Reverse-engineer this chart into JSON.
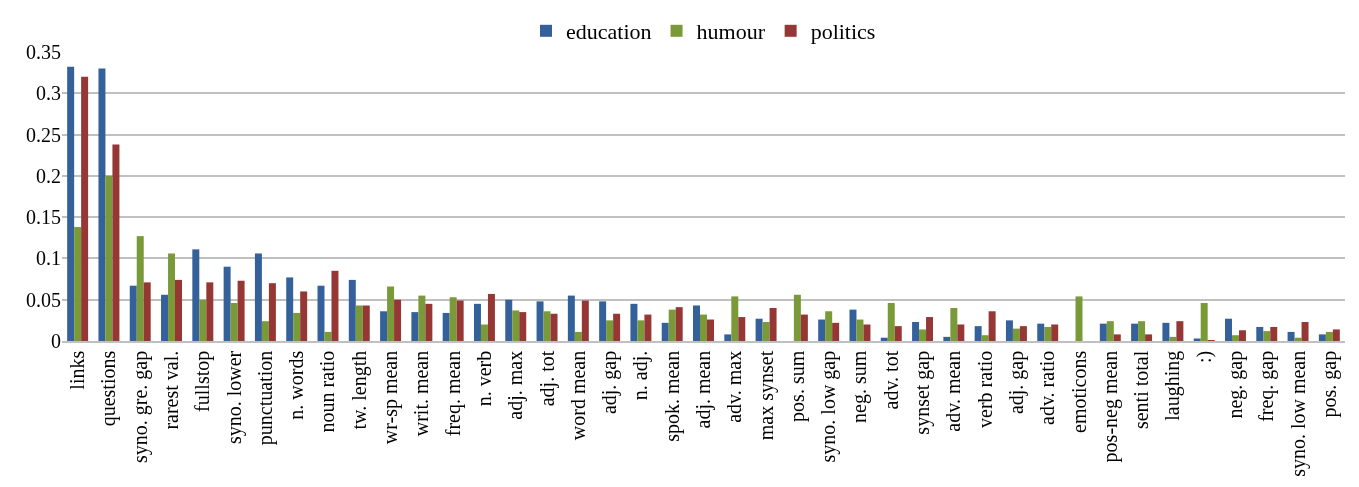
{
  "chart_data": {
    "type": "bar",
    "categories": [
      "links",
      "questions",
      "syno. gre. gap",
      "rarest val.",
      "fullstop",
      "syno. lower",
      "punctuation",
      "n. words",
      "noun ratio",
      "tw. length",
      "wr-sp mean",
      "writ. mean",
      "freq. mean",
      "n. verb",
      "adj. max",
      "adj. tot",
      "word mean",
      "adj. gap",
      "n. adj.",
      "spok. mean",
      "adj. mean",
      "adv. max",
      "max synset",
      "pos. sum",
      "syno. low gap",
      "neg. sum",
      "adv. tot",
      "synset gap",
      "adv. mean",
      "verb ratio",
      "adj. gap",
      "adv. ratio",
      "emoticons",
      "pos-neg mean",
      "senti total",
      "laughing",
      ":)",
      "neg. gap",
      "freq. gap",
      "syno. low mean",
      "pos. gap"
    ],
    "series": [
      {
        "name": "education",
        "color": "#34619a",
        "values": [
          0.332,
          0.33,
          0.067,
          0.056,
          0.111,
          0.09,
          0.106,
          0.077,
          0.067,
          0.074,
          0.036,
          0.035,
          0.034,
          0.045,
          0.05,
          0.048,
          0.055,
          0.048,
          0.045,
          0.022,
          0.043,
          0.008,
          0.027,
          0.0,
          0.026,
          0.038,
          0.004,
          0.023,
          0.005,
          0.018,
          0.025,
          0.021,
          0.0,
          0.021,
          0.021,
          0.022,
          0.003,
          0.027,
          0.017,
          0.011,
          0.008
        ]
      },
      {
        "name": "humour",
        "color": "#7a9a3a",
        "values": [
          0.138,
          0.2,
          0.127,
          0.106,
          0.05,
          0.046,
          0.024,
          0.034,
          0.011,
          0.043,
          0.066,
          0.055,
          0.053,
          0.02,
          0.037,
          0.036,
          0.011,
          0.025,
          0.025,
          0.038,
          0.032,
          0.054,
          0.023,
          0.056,
          0.036,
          0.026,
          0.046,
          0.014,
          0.04,
          0.007,
          0.015,
          0.017,
          0.054,
          0.024,
          0.024,
          0.005,
          0.046,
          0.007,
          0.012,
          0.004,
          0.011
        ]
      },
      {
        "name": "politics",
        "color": "#953735",
        "values": [
          0.32,
          0.238,
          0.071,
          0.074,
          0.071,
          0.073,
          0.07,
          0.06,
          0.085,
          0.043,
          0.05,
          0.045,
          0.049,
          0.057,
          0.035,
          0.033,
          0.049,
          0.033,
          0.032,
          0.041,
          0.026,
          0.029,
          0.04,
          0.032,
          0.022,
          0.02,
          0.018,
          0.029,
          0.02,
          0.036,
          0.018,
          0.02,
          0.0,
          0.008,
          0.008,
          0.024,
          0.001,
          0.013,
          0.017,
          0.023,
          0.014
        ]
      }
    ],
    "ylim": [
      0,
      0.35
    ],
    "yticks": [
      0,
      {
        "value": 0.05,
        "label": "0.05"
      },
      {
        "value": 0.1,
        "label": "0.1"
      },
      {
        "value": 0.15,
        "label": "0.15"
      },
      {
        "value": 0.2,
        "label": "0.2"
      },
      {
        "value": 0.25,
        "label": "0.25"
      },
      {
        "value": 0.3,
        "label": "0.3"
      },
      {
        "value": 0.35,
        "label": "0.35"
      }
    ],
    "grid": "y",
    "legend": "top"
  }
}
